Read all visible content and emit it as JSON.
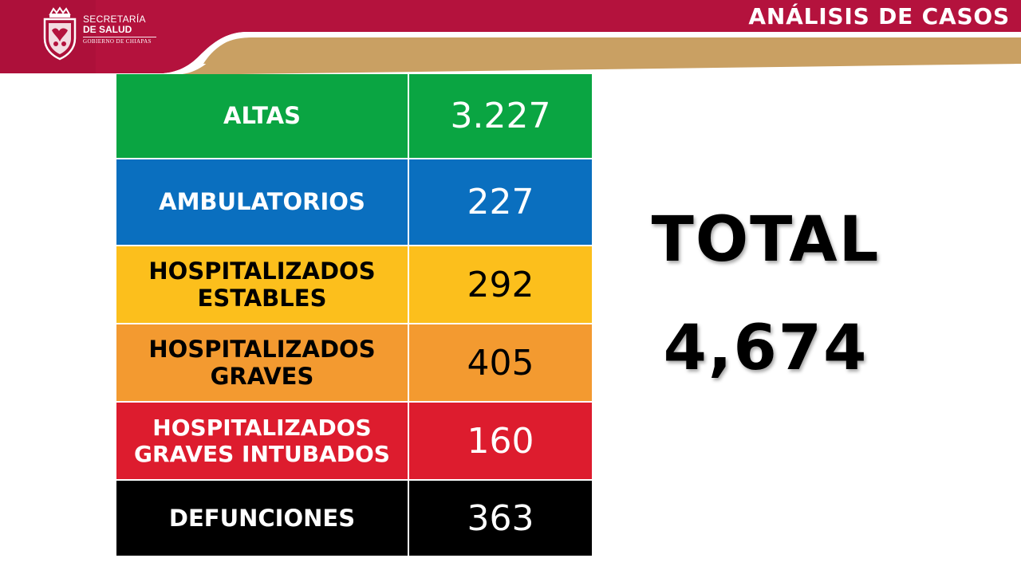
{
  "header": {
    "title": "ANÁLISIS DE CASOS",
    "org_line1": "SECRETARÍA",
    "org_line2": "DE SALUD",
    "org_line3": "GOBIERNO DE CHIAPAS",
    "colors": {
      "banner": "#b4123d",
      "banner_stripe": "#c9a063"
    }
  },
  "table": {
    "rows": [
      {
        "label": "ALTAS",
        "value": "3.227",
        "bg": "#0aa542",
        "fg": "#ffffff"
      },
      {
        "label": "AMBULATORIOS",
        "value": "227",
        "bg": "#0a6fbf",
        "fg": "#ffffff"
      },
      {
        "label": "HOSPITALIZADOS ESTABLES",
        "value": "292",
        "bg": "#fcbf1c",
        "fg": "#000000"
      },
      {
        "label": "HOSPITALIZADOS GRAVES",
        "value": "405",
        "bg": "#f39a30",
        "fg": "#000000"
      },
      {
        "label": "HOSPITALIZADOS GRAVES INTUBADOS",
        "value": "160",
        "bg": "#dd1c2e",
        "fg": "#ffffff"
      },
      {
        "label": "DEFUNCIONES",
        "value": "363",
        "bg": "#000000",
        "fg": "#ffffff"
      }
    ]
  },
  "total": {
    "label": "TOTAL",
    "value": "4,674"
  }
}
